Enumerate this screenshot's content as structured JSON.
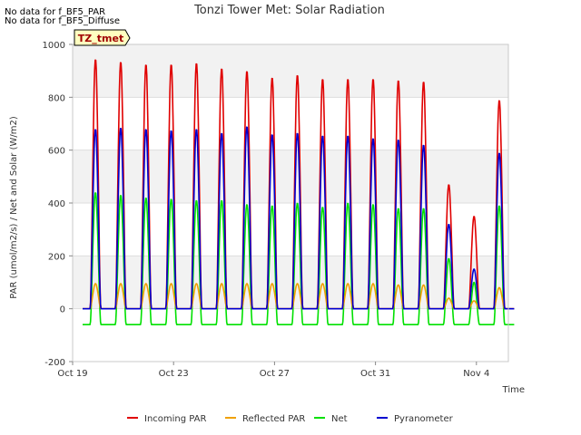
{
  "notes": [
    "No data for f_BF5_PAR",
    "No data for f_BF5_Diffuse"
  ],
  "site_tag": "TZ_tmet",
  "chart_data": {
    "type": "line",
    "title": "Tonzi Tower Met: Solar Radiation",
    "xlabel": "Time",
    "ylabel": "PAR (umol/m2/s) / Net and Solar (W/m2)",
    "ylim": [
      -200,
      1000
    ],
    "yticks": [
      -200,
      0,
      200,
      400,
      600,
      800,
      1000
    ],
    "xlim_days": [
      0,
      17.4
    ],
    "xticks": [
      {
        "day": 0,
        "label": "Oct 19"
      },
      {
        "day": 4,
        "label": "Oct 23"
      },
      {
        "day": 8,
        "label": "Oct 27"
      },
      {
        "day": 12,
        "label": "Oct 31"
      },
      {
        "day": 16,
        "label": "Nov 4"
      }
    ],
    "grid": true,
    "legend_position": "bottom",
    "days": [
      "Oct 19",
      "Oct 20",
      "Oct 21",
      "Oct 22",
      "Oct 23",
      "Oct 24",
      "Oct 25",
      "Oct 26",
      "Oct 27",
      "Oct 28",
      "Oct 29",
      "Oct 30",
      "Oct 31",
      "Nov 1",
      "Nov 2",
      "Nov 3",
      "Nov 4"
    ],
    "series": [
      {
        "name": "Incoming PAR",
        "color": "#e00000",
        "night": 0,
        "daily_peak": [
          945,
          935,
          925,
          925,
          930,
          910,
          900,
          875,
          885,
          870,
          870,
          870,
          865,
          860,
          470,
          350,
          790
        ]
      },
      {
        "name": "Reflected PAR",
        "color": "#f0a000",
        "night": 0,
        "daily_peak": [
          95,
          95,
          95,
          95,
          95,
          95,
          95,
          95,
          95,
          95,
          95,
          95,
          90,
          90,
          40,
          30,
          80
        ]
      },
      {
        "name": "Net",
        "color": "#00e000",
        "night": -60,
        "daily_peak": [
          440,
          430,
          420,
          415,
          410,
          410,
          395,
          390,
          400,
          385,
          400,
          395,
          380,
          380,
          190,
          100,
          390
        ]
      },
      {
        "name": "Pyranometer",
        "color": "#0000d0",
        "night": 0,
        "daily_peak": [
          680,
          685,
          680,
          675,
          680,
          665,
          690,
          660,
          665,
          655,
          655,
          645,
          640,
          620,
          320,
          150,
          590
        ]
      }
    ]
  }
}
